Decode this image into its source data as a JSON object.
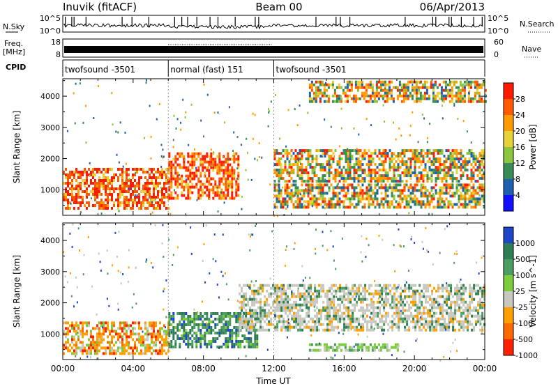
{
  "header": {
    "station": "Inuvik (fitACF)",
    "beam": "Beam 00",
    "date": "06/Apr/2013"
  },
  "noise_panel": {
    "left_label": "N.Sky",
    "right_label": "N.Search",
    "left_ticks": [
      "10^5",
      "10^0"
    ],
    "right_ticks": [
      "10^5",
      "10^0"
    ]
  },
  "freq_panel": {
    "left_label_1": "Freq.",
    "left_label_2": "[MHz]",
    "right_label": "Nave",
    "left_ticks": [
      "18",
      "8"
    ],
    "right_ticks": [
      "60",
      "0"
    ]
  },
  "cpid": {
    "label": "CPID",
    "segments": [
      {
        "name": "twofsound -3501",
        "start_hour": 0,
        "end_hour": 6
      },
      {
        "name": "normal (fast) 151",
        "start_hour": 6,
        "end_hour": 12
      },
      {
        "name": "twofsound -3501",
        "start_hour": 12,
        "end_hour": 24
      }
    ]
  },
  "chart_data": [
    {
      "type": "heatmap",
      "title": "",
      "xlabel": "",
      "ylabel": "Slant Range [km]",
      "xlim": [
        0,
        24
      ],
      "ylim": [
        180,
        4560
      ],
      "yticks": [
        1000,
        2000,
        3000,
        4000
      ],
      "yticklabels": [
        "1000",
        "2000",
        "3000",
        "4000"
      ],
      "colorbar": {
        "label": "Power [dB]",
        "ticks": [
          "28",
          "24",
          "20",
          "16",
          "12",
          "8",
          "4"
        ],
        "colors": [
          "#ff1a00",
          "#ff5a00",
          "#ff9a00",
          "#e8d23a",
          "#8cc63f",
          "#3a8c55",
          "#1e5fb0",
          "#1010ff"
        ]
      },
      "regions": [
        {
          "x0": 0,
          "x1": 6,
          "y0": 400,
          "y1": 1700,
          "level": "high"
        },
        {
          "x0": 6,
          "x1": 10,
          "y0": 700,
          "y1": 2200,
          "level": "high"
        },
        {
          "x0": 12,
          "x1": 24,
          "y0": 1300,
          "y1": 2300,
          "level": "mid"
        },
        {
          "x0": 12,
          "x1": 24,
          "y0": 400,
          "y1": 1200,
          "level": "mid"
        },
        {
          "x0": 14,
          "x1": 24,
          "y0": 3800,
          "y1": 4500,
          "level": "mid"
        }
      ]
    },
    {
      "type": "heatmap",
      "title": "",
      "xlabel": "Time UT",
      "ylabel": "Slant Range [km]",
      "xlim": [
        0,
        24
      ],
      "ylim": [
        180,
        4560
      ],
      "xticks": [
        0,
        4,
        8,
        12,
        16,
        20,
        24
      ],
      "xticklabels": [
        "00:00",
        "04:00",
        "08:00",
        "12:00",
        "16:00",
        "20:00",
        "00:00"
      ],
      "yticks": [
        1000,
        2000,
        3000,
        4000
      ],
      "yticklabels": [
        "1000",
        "2000",
        "3000",
        "4000"
      ],
      "colorbar": {
        "label": "Velocity [m s^-1]",
        "ticks": [
          "1000",
          "500",
          "100",
          "25",
          "-25",
          "-100",
          "-500",
          "-1000"
        ],
        "colors": [
          "#1e46c8",
          "#2e7d55",
          "#4c9e60",
          "#7ccc3c",
          "#c8c8c0",
          "#ffa000",
          "#ff6a00",
          "#ff2200"
        ]
      },
      "regions": [
        {
          "x0": 0,
          "x1": 6,
          "y0": 400,
          "y1": 1400,
          "level": "negative"
        },
        {
          "x0": 6,
          "x1": 11,
          "y0": 600,
          "y1": 1700,
          "level": "positive"
        },
        {
          "x0": 10,
          "x1": 24,
          "y0": 1100,
          "y1": 2600,
          "level": "near-zero"
        },
        {
          "x0": 14,
          "x1": 19,
          "y0": 450,
          "y1": 700,
          "level": "positive-low"
        }
      ]
    }
  ]
}
